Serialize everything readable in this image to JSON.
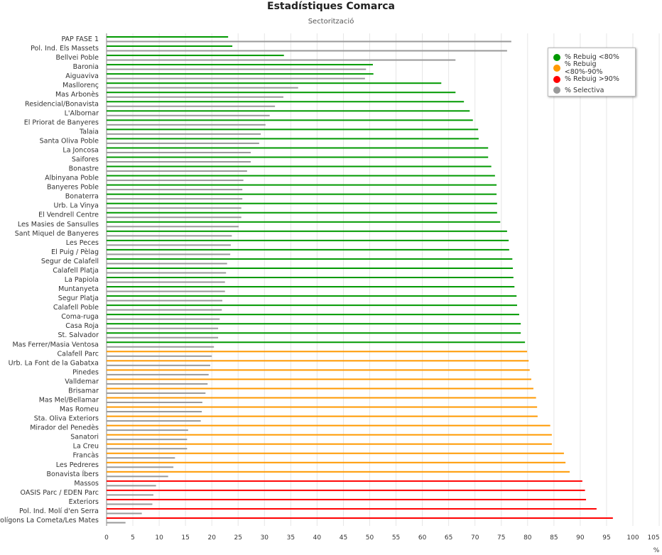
{
  "chart_data": {
    "type": "bar",
    "orientation": "horizontal",
    "title": "Estadístiques Comarca",
    "subtitle": "Sectorització",
    "xlabel": "%",
    "xlim": [
      0,
      105
    ],
    "xticks": [
      "0",
      "5",
      "10",
      "15",
      "20",
      "25",
      "30",
      "35",
      "40",
      "45",
      "50",
      "55",
      "60",
      "65",
      "70",
      "75",
      "80",
      "85",
      "90",
      "95",
      "100",
      "105"
    ],
    "grid": true,
    "legend_position": "top-right",
    "legend": [
      {
        "name": "% Rebuig <80%",
        "color": "#009900"
      },
      {
        "name": "% Rebuig <80%-90%",
        "color": "#ff9900"
      },
      {
        "name": "% Rebuig >90%",
        "color": "#ff0000"
      },
      {
        "name": "% Selectiva",
        "color": "#999999"
      }
    ],
    "categories": [
      "PAP FASE 1",
      "Pol. Ind. Els Massets",
      "Bellvei Poble",
      "Baronia",
      "Aiguaviva",
      "Masllorenç",
      "Mas Arbonès",
      "Residencial/Bonavista",
      "L'Albornar",
      "El Priorat de Banyeres",
      "Talaia",
      "Santa Oliva Poble",
      "La Joncosa",
      "Saifores",
      "Bonastre",
      "Albinyana Poble",
      "Banyeres Poble",
      "Bonaterra",
      "Urb. La Vinya",
      "El Vendrell Centre",
      "Les Masies de Sansulles",
      "Sant Miquel de Banyeres",
      "Les Peces",
      "El Puig / Pèlag",
      "Segur de Calafell",
      "Calafell Platja",
      "La Papiola",
      "Muntanyeta",
      "Segur Platja",
      "Calafell Poble",
      "Coma-ruga",
      "Casa Roja",
      "St. Salvador",
      "Mas Ferrer/Masia Ventosa",
      "Calafell Parc",
      "Urb. La Font de la Gabatxa",
      "Pinedes",
      "Valldemar",
      "Brisamar",
      "Mas Mel/Bellamar",
      "Mas Romeu",
      "Sta. Oliva Exteriors",
      "Mirador del Penedès",
      "Sanatori",
      "La Creu",
      "Francàs",
      "Les Pedreres",
      "Bonavista Íbers",
      "Massos",
      "OASIS Parc / EDEN Parc",
      "Exteriors",
      "Pol. Ind. Molí d'en Serra",
      "Polígons La Cometa/Les Mates"
    ],
    "rebuig": [
      23.1,
      23.9,
      33.7,
      50.6,
      50.7,
      63.6,
      66.3,
      67.9,
      69.0,
      69.6,
      70.6,
      70.7,
      72.5,
      72.5,
      73.1,
      73.8,
      74.1,
      74.1,
      74.2,
      74.2,
      74.8,
      76.1,
      76.4,
      76.5,
      77.1,
      77.2,
      77.3,
      77.5,
      77.9,
      78.0,
      78.4,
      78.7,
      78.7,
      79.5,
      79.9,
      80.2,
      80.4,
      80.7,
      81.1,
      81.6,
      81.8,
      81.9,
      84.3,
      84.6,
      84.6,
      86.9,
      87.2,
      88.0,
      90.4,
      90.9,
      91.1,
      93.1,
      96.2
    ],
    "selectiva": [
      76.9,
      76.1,
      66.3,
      49.3,
      49.1,
      36.4,
      33.6,
      32.0,
      31.0,
      30.2,
      29.3,
      29.0,
      27.4,
      27.4,
      26.7,
      26.0,
      25.8,
      25.8,
      25.6,
      25.6,
      25.1,
      23.8,
      23.6,
      23.5,
      22.9,
      22.7,
      22.5,
      22.5,
      22.0,
      21.9,
      21.5,
      21.2,
      21.2,
      20.4,
      20.0,
      19.7,
      19.4,
      19.2,
      18.8,
      18.2,
      18.1,
      17.9,
      15.5,
      15.3,
      15.3,
      13.0,
      12.7,
      11.7,
      9.4,
      8.9,
      8.7,
      6.7,
      3.6
    ]
  }
}
